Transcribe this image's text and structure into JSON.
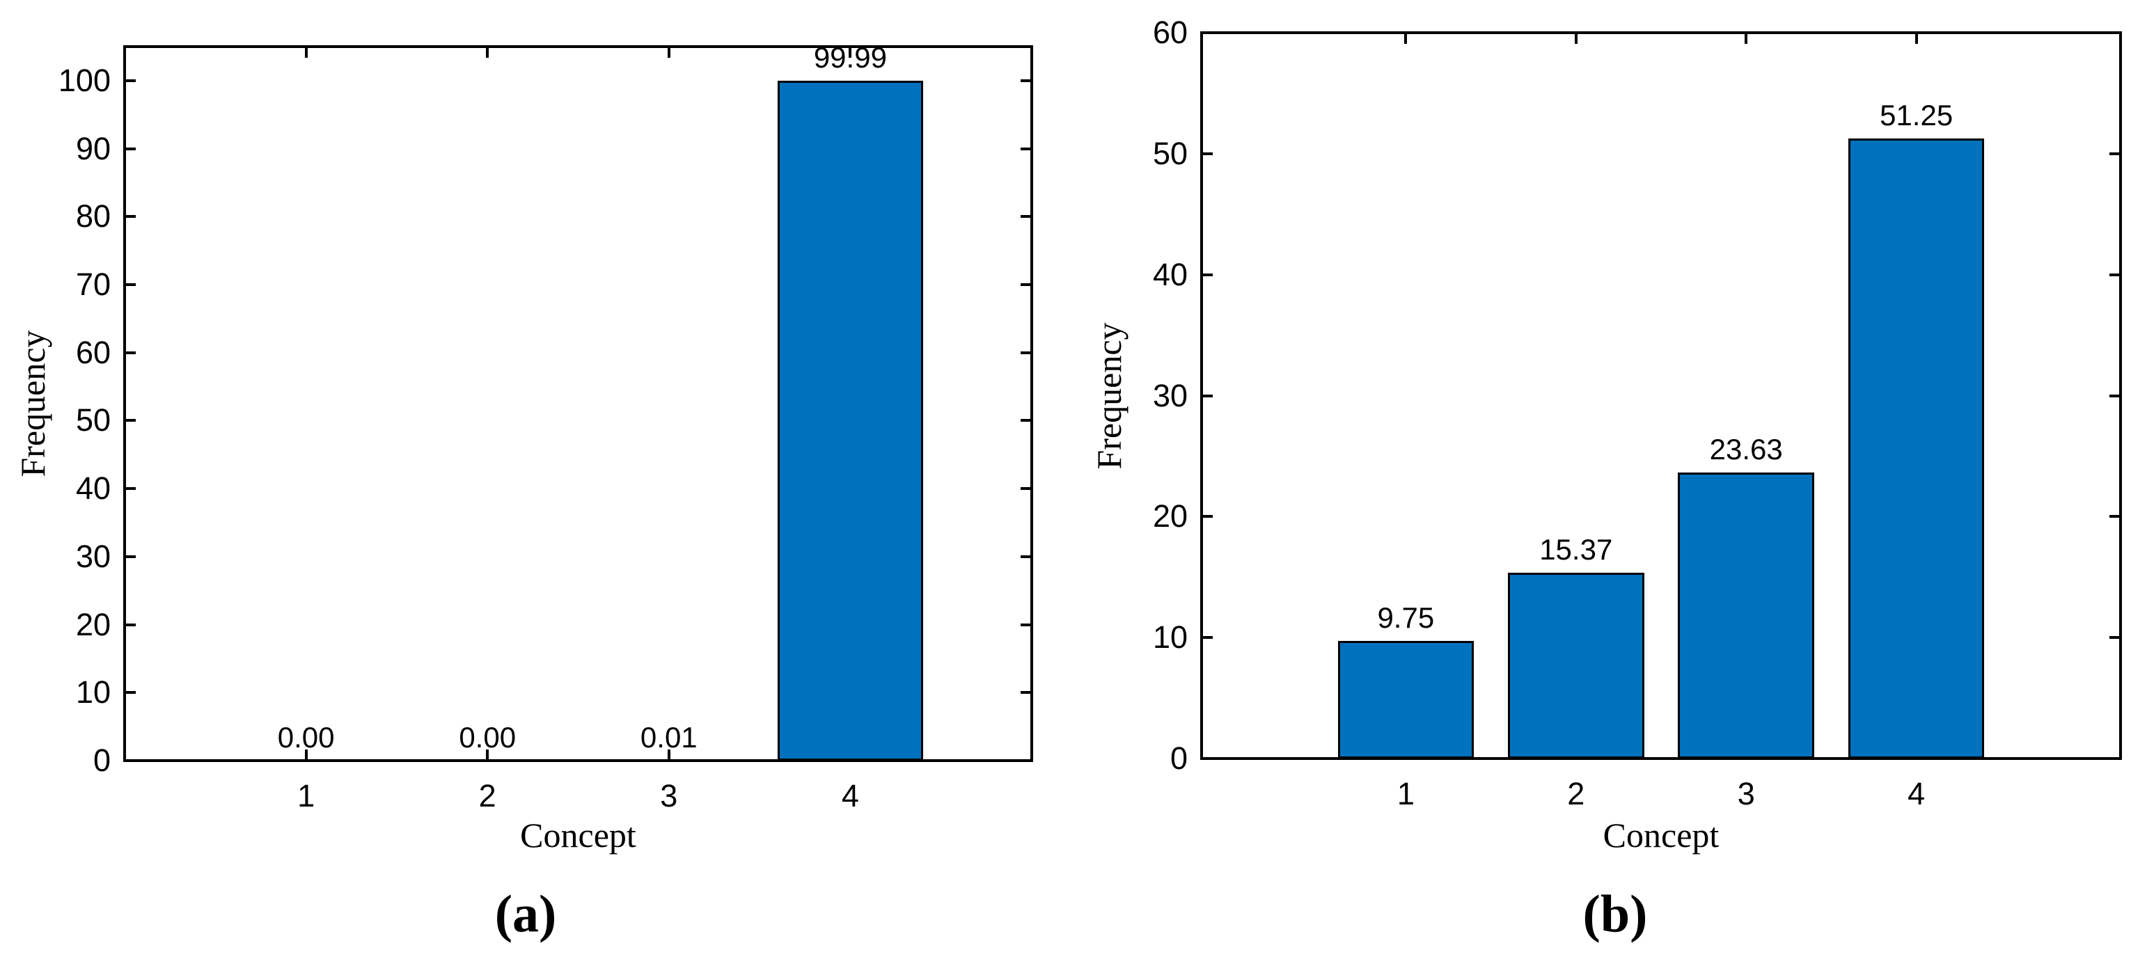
{
  "figure": {
    "background": "#ffffff",
    "axis_color": "#000000",
    "bar_color": "#0072BD",
    "bar_edge_color": "#000000"
  },
  "chart_data": [
    {
      "id": "a",
      "type": "bar",
      "panel_label": "(a)",
      "xlabel": "Concept",
      "ylabel": "Frequency",
      "categories": [
        "1",
        "2",
        "3",
        "4"
      ],
      "values": [
        0.0,
        0.0,
        0.01,
        99.99
      ],
      "value_labels": [
        "0.00",
        "0.00",
        "0.01",
        "99.99"
      ],
      "yticks": [
        0,
        10,
        20,
        30,
        40,
        50,
        60,
        70,
        80,
        90,
        100
      ],
      "ylim": [
        0,
        105
      ],
      "xlim": [
        0,
        5
      ],
      "bar_width_units": 0.8,
      "grid": false,
      "legend": "none",
      "bar_color": "#0072BD",
      "bar_edge_color": "#000000"
    },
    {
      "id": "b",
      "type": "bar",
      "panel_label": "(b)",
      "xlabel": "Concept",
      "ylabel": "Frequency",
      "categories": [
        "1",
        "2",
        "3",
        "4"
      ],
      "values": [
        9.75,
        15.37,
        23.63,
        51.25
      ],
      "value_labels": [
        "9.75",
        "15.37",
        "23.63",
        "51.25"
      ],
      "yticks": [
        0,
        10,
        20,
        30,
        40,
        50,
        60
      ],
      "ylim": [
        0,
        60
      ],
      "xlim": [
        -0.2,
        5.2
      ],
      "bar_width_units": 0.8,
      "grid": false,
      "legend": "none",
      "bar_color": "#0072BD",
      "bar_edge_color": "#000000"
    }
  ]
}
